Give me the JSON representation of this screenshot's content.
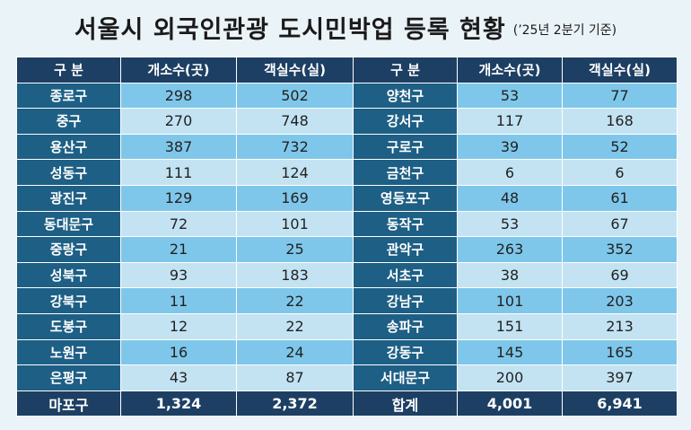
{
  "title": "서울시 외국인관광 도시민박업 등록 현황",
  "subtitle": "(’25년 2분기 기준)",
  "headers": [
    "구 분",
    "개소수(곳)",
    "객실수(실)",
    "구 분",
    "개소수(곳)",
    "객실수(실)"
  ],
  "rows": [
    {
      "l_name": "종로구",
      "l_count": "298",
      "l_rooms": "502",
      "r_name": "양천구",
      "r_count": "53",
      "r_rooms": "77"
    },
    {
      "l_name": "중구",
      "l_count": "270",
      "l_rooms": "748",
      "r_name": "강서구",
      "r_count": "117",
      "r_rooms": "168"
    },
    {
      "l_name": "용산구",
      "l_count": "387",
      "l_rooms": "732",
      "r_name": "구로구",
      "r_count": "39",
      "r_rooms": "52"
    },
    {
      "l_name": "성동구",
      "l_count": "111",
      "l_rooms": "124",
      "r_name": "금천구",
      "r_count": "6",
      "r_rooms": "6"
    },
    {
      "l_name": "광진구",
      "l_count": "129",
      "l_rooms": "169",
      "r_name": "영등포구",
      "r_count": "48",
      "r_rooms": "61"
    },
    {
      "l_name": "동대문구",
      "l_count": "72",
      "l_rooms": "101",
      "r_name": "동작구",
      "r_count": "53",
      "r_rooms": "67"
    },
    {
      "l_name": "중랑구",
      "l_count": "21",
      "l_rooms": "25",
      "r_name": "관악구",
      "r_count": "263",
      "r_rooms": "352"
    },
    {
      "l_name": "성북구",
      "l_count": "93",
      "l_rooms": "183",
      "r_name": "서초구",
      "r_count": "38",
      "r_rooms": "69"
    },
    {
      "l_name": "강북구",
      "l_count": "11",
      "l_rooms": "22",
      "r_name": "강남구",
      "r_count": "101",
      "r_rooms": "203"
    },
    {
      "l_name": "도봉구",
      "l_count": "12",
      "l_rooms": "22",
      "r_name": "송파구",
      "r_count": "151",
      "r_rooms": "213"
    },
    {
      "l_name": "노원구",
      "l_count": "16",
      "l_rooms": "24",
      "r_name": "강동구",
      "r_count": "145",
      "r_rooms": "165"
    },
    {
      "l_name": "은평구",
      "l_count": "43",
      "l_rooms": "87",
      "r_name": "서대문구",
      "r_count": "200",
      "r_rooms": "397"
    },
    {
      "l_name": "마포구",
      "l_count": "1,324",
      "l_rooms": "2,372",
      "r_name": "합계",
      "r_count": "4,001",
      "r_rooms": "6,941"
    }
  ],
  "colors": {
    "header_bg": "#1d3f63",
    "name_bg": "#1e5f85",
    "row_light": "#c3e3f3",
    "row_dark": "#7fc7ea"
  }
}
